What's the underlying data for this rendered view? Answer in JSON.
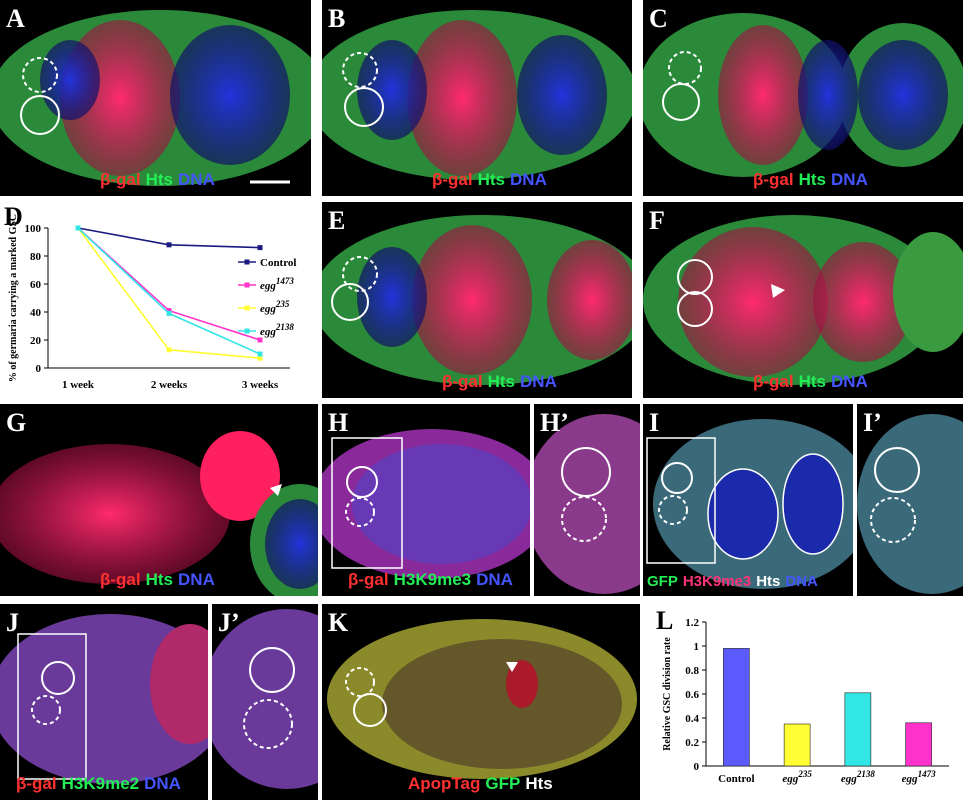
{
  "figure": {
    "panels": [
      {
        "id": "A",
        "label": "A",
        "stains": [
          {
            "text": "β-gal",
            "color": "red"
          },
          {
            "text": "Hts",
            "color": "green"
          },
          {
            "text": "DNA",
            "color": "blue"
          }
        ]
      },
      {
        "id": "B",
        "label": "B",
        "stains": [
          {
            "text": "β-gal",
            "color": "red"
          },
          {
            "text": "Hts",
            "color": "green"
          },
          {
            "text": "DNA",
            "color": "blue"
          }
        ]
      },
      {
        "id": "C",
        "label": "C",
        "stains": [
          {
            "text": "β-gal",
            "color": "red"
          },
          {
            "text": "Hts",
            "color": "green"
          },
          {
            "text": "DNA",
            "color": "blue"
          }
        ]
      },
      {
        "id": "E",
        "label": "E",
        "stains": [
          {
            "text": "β-gal",
            "color": "red"
          },
          {
            "text": "Hts",
            "color": "green"
          },
          {
            "text": "DNA",
            "color": "blue"
          }
        ]
      },
      {
        "id": "F",
        "label": "F",
        "stains": [
          {
            "text": "β-gal",
            "color": "red"
          },
          {
            "text": "Hts",
            "color": "green"
          },
          {
            "text": "DNA",
            "color": "blue"
          }
        ]
      },
      {
        "id": "G",
        "label": "G",
        "stains": [
          {
            "text": "β-gal",
            "color": "red"
          },
          {
            "text": "Hts",
            "color": "green"
          },
          {
            "text": "DNA",
            "color": "blue"
          }
        ]
      },
      {
        "id": "H",
        "label": "H",
        "stains": [
          {
            "text": "β-gal",
            "color": "red"
          },
          {
            "text": "H3K9me3",
            "color": "green"
          },
          {
            "text": "DNA",
            "color": "blue"
          }
        ]
      },
      {
        "id": "H2",
        "label": "H’",
        "stains": []
      },
      {
        "id": "I",
        "label": "I",
        "stains": [
          {
            "text": "GFP",
            "color": "green"
          },
          {
            "text": "H3K9me3",
            "color": "magenta"
          },
          {
            "text": "Hts",
            "color": "white"
          },
          {
            "text": "DNA",
            "color": "blue"
          }
        ]
      },
      {
        "id": "I2",
        "label": "I’",
        "stains": []
      },
      {
        "id": "J",
        "label": "J",
        "stains": [
          {
            "text": "β-gal",
            "color": "red"
          },
          {
            "text": "H3K9me2",
            "color": "green"
          },
          {
            "text": "DNA",
            "color": "blue"
          }
        ]
      },
      {
        "id": "J2",
        "label": "J’",
        "stains": []
      },
      {
        "id": "K",
        "label": "K",
        "stains": [
          {
            "text": "ApopTag",
            "color": "red"
          },
          {
            "text": "GFP",
            "color": "green"
          },
          {
            "text": "Hts",
            "color": "white"
          }
        ]
      }
    ]
  },
  "chart_data": [
    {
      "panel": "D",
      "type": "line",
      "ylabel": "% of germaria carrying a marked GSC",
      "categories": [
        "1 week",
        "2 weeks",
        "3 weeks"
      ],
      "ylim": [
        0,
        100
      ],
      "yticks": [
        0,
        20,
        40,
        60,
        80,
        100
      ],
      "legend_position": "right",
      "series": [
        {
          "name": "Control",
          "color": "#1a1a80",
          "values": [
            100,
            88,
            86
          ]
        },
        {
          "name": "egg1473",
          "base": "egg",
          "sup": "1473",
          "color": "#ff33cc",
          "values": [
            100,
            41,
            20
          ]
        },
        {
          "name": "egg235",
          "base": "egg",
          "sup": "235",
          "color": "#ffff33",
          "values": [
            100,
            13,
            7
          ]
        },
        {
          "name": "egg2138",
          "base": "egg",
          "sup": "2138",
          "color": "#33e6e6",
          "values": [
            100,
            39,
            10
          ]
        }
      ]
    },
    {
      "panel": "L",
      "type": "bar",
      "ylabel": "Relative GSC division rate",
      "ylim": [
        0,
        1.2
      ],
      "yticks": [
        "0",
        "0.2",
        "0.4",
        "0.6",
        "0.8",
        "1",
        "1.2"
      ],
      "categories": [
        {
          "base": "Control",
          "sup": ""
        },
        {
          "base": "egg",
          "sup": "235"
        },
        {
          "base": "egg",
          "sup": "2138"
        },
        {
          "base": "egg",
          "sup": "1473"
        }
      ],
      "values": [
        0.98,
        0.35,
        0.61,
        0.36
      ],
      "colors": [
        "#5b5bff",
        "#ffff33",
        "#33e6e6",
        "#ff33cc"
      ]
    }
  ]
}
